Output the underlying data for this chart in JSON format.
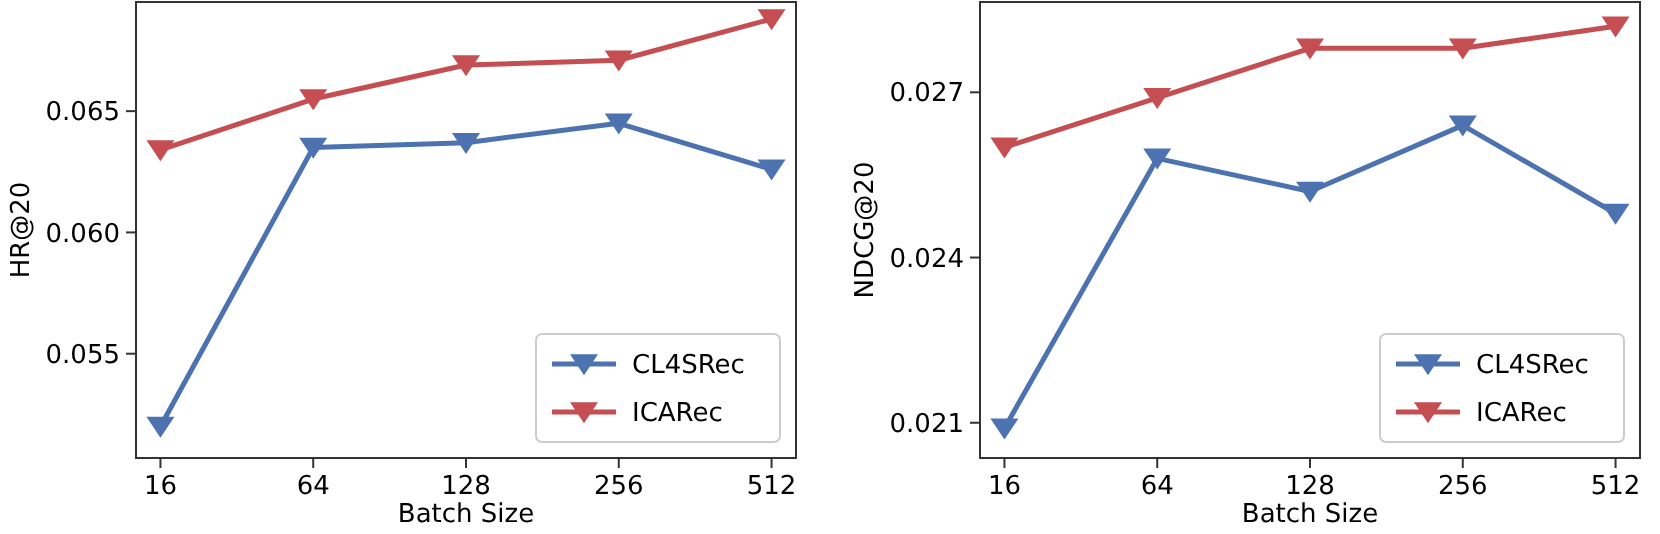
{
  "chart_data": [
    {
      "type": "line",
      "xlabel": "Batch Size",
      "ylabel": "HR@20",
      "categories": [
        "16",
        "64",
        "128",
        "256",
        "512"
      ],
      "ylim": [
        0.0507,
        0.0695
      ],
      "yticks": [
        {
          "value": 0.055,
          "label": "0.055"
        },
        {
          "value": 0.06,
          "label": "0.060"
        },
        {
          "value": 0.065,
          "label": "0.065"
        }
      ],
      "marker": "triangle",
      "legend": "bottom right",
      "grid": false,
      "series": [
        {
          "name": "CL4SRec",
          "color": "#4c72b0",
          "values": [
            0.052,
            0.0635,
            0.0637,
            0.0645,
            0.0626
          ]
        },
        {
          "name": "ICARec",
          "color": "#c44e52",
          "values": [
            0.0634,
            0.0655,
            0.0669,
            0.0671,
            0.0688
          ]
        }
      ]
    },
    {
      "type": "line",
      "xlabel": "Batch Size",
      "ylabel": "NDCG@20",
      "categories": [
        "16",
        "64",
        "128",
        "256",
        "512"
      ],
      "ylim": [
        0.02036,
        0.02864
      ],
      "yticks": [
        {
          "value": 0.021,
          "label": "0.021"
        },
        {
          "value": 0.024,
          "label": "0.024"
        },
        {
          "value": 0.027,
          "label": "0.027"
        }
      ],
      "marker": "triangle",
      "legend": "bottom right",
      "grid": false,
      "series": [
        {
          "name": "CL4SRec",
          "color": "#4c72b0",
          "values": [
            0.0209,
            0.0258,
            0.0252,
            0.0264,
            0.0248
          ]
        },
        {
          "name": "ICARec",
          "color": "#c44e52",
          "values": [
            0.026,
            0.0269,
            0.0278,
            0.0278,
            0.0282
          ]
        }
      ]
    }
  ]
}
